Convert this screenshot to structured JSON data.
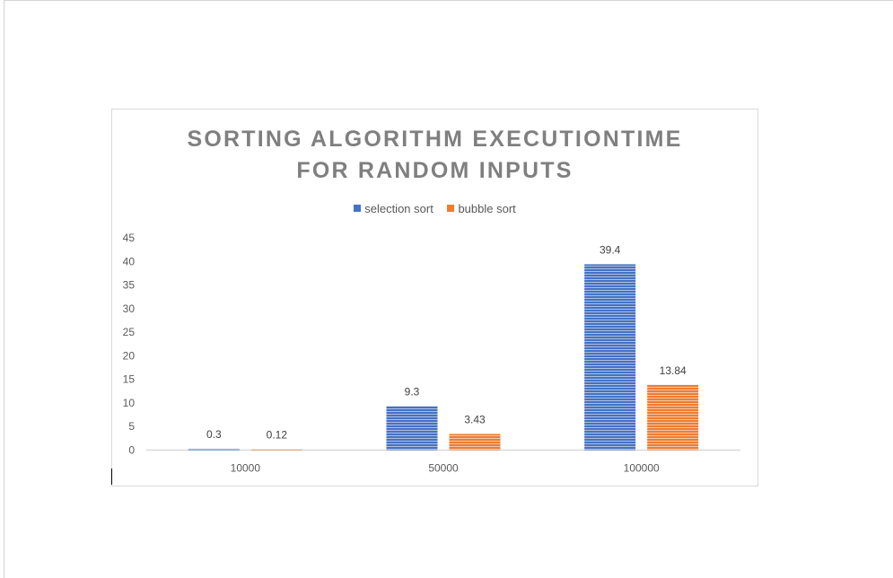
{
  "chart_data": {
    "type": "bar",
    "title_lines": [
      "SORTING ALGORITHM EXECUTIONTIME",
      "FOR RANDOM INPUTS"
    ],
    "categories": [
      "10000",
      "50000",
      "100000"
    ],
    "series": [
      {
        "name": "selection sort",
        "values": [
          0.3,
          9.3,
          39.4
        ],
        "labels": [
          "0.3",
          "9.3",
          "39.4"
        ],
        "color": "#4472c4"
      },
      {
        "name": "bubble sort",
        "values": [
          0.12,
          3.43,
          13.84
        ],
        "labels": [
          "0.12",
          "3.43",
          "13.84"
        ],
        "color": "#ed7d31"
      }
    ],
    "ylim": [
      0,
      45
    ],
    "yticks": [
      0,
      5,
      10,
      15,
      20,
      25,
      30,
      35,
      40,
      45
    ],
    "grid": false,
    "legend_position": "top",
    "bar_pattern": "horizontal-stripes"
  }
}
